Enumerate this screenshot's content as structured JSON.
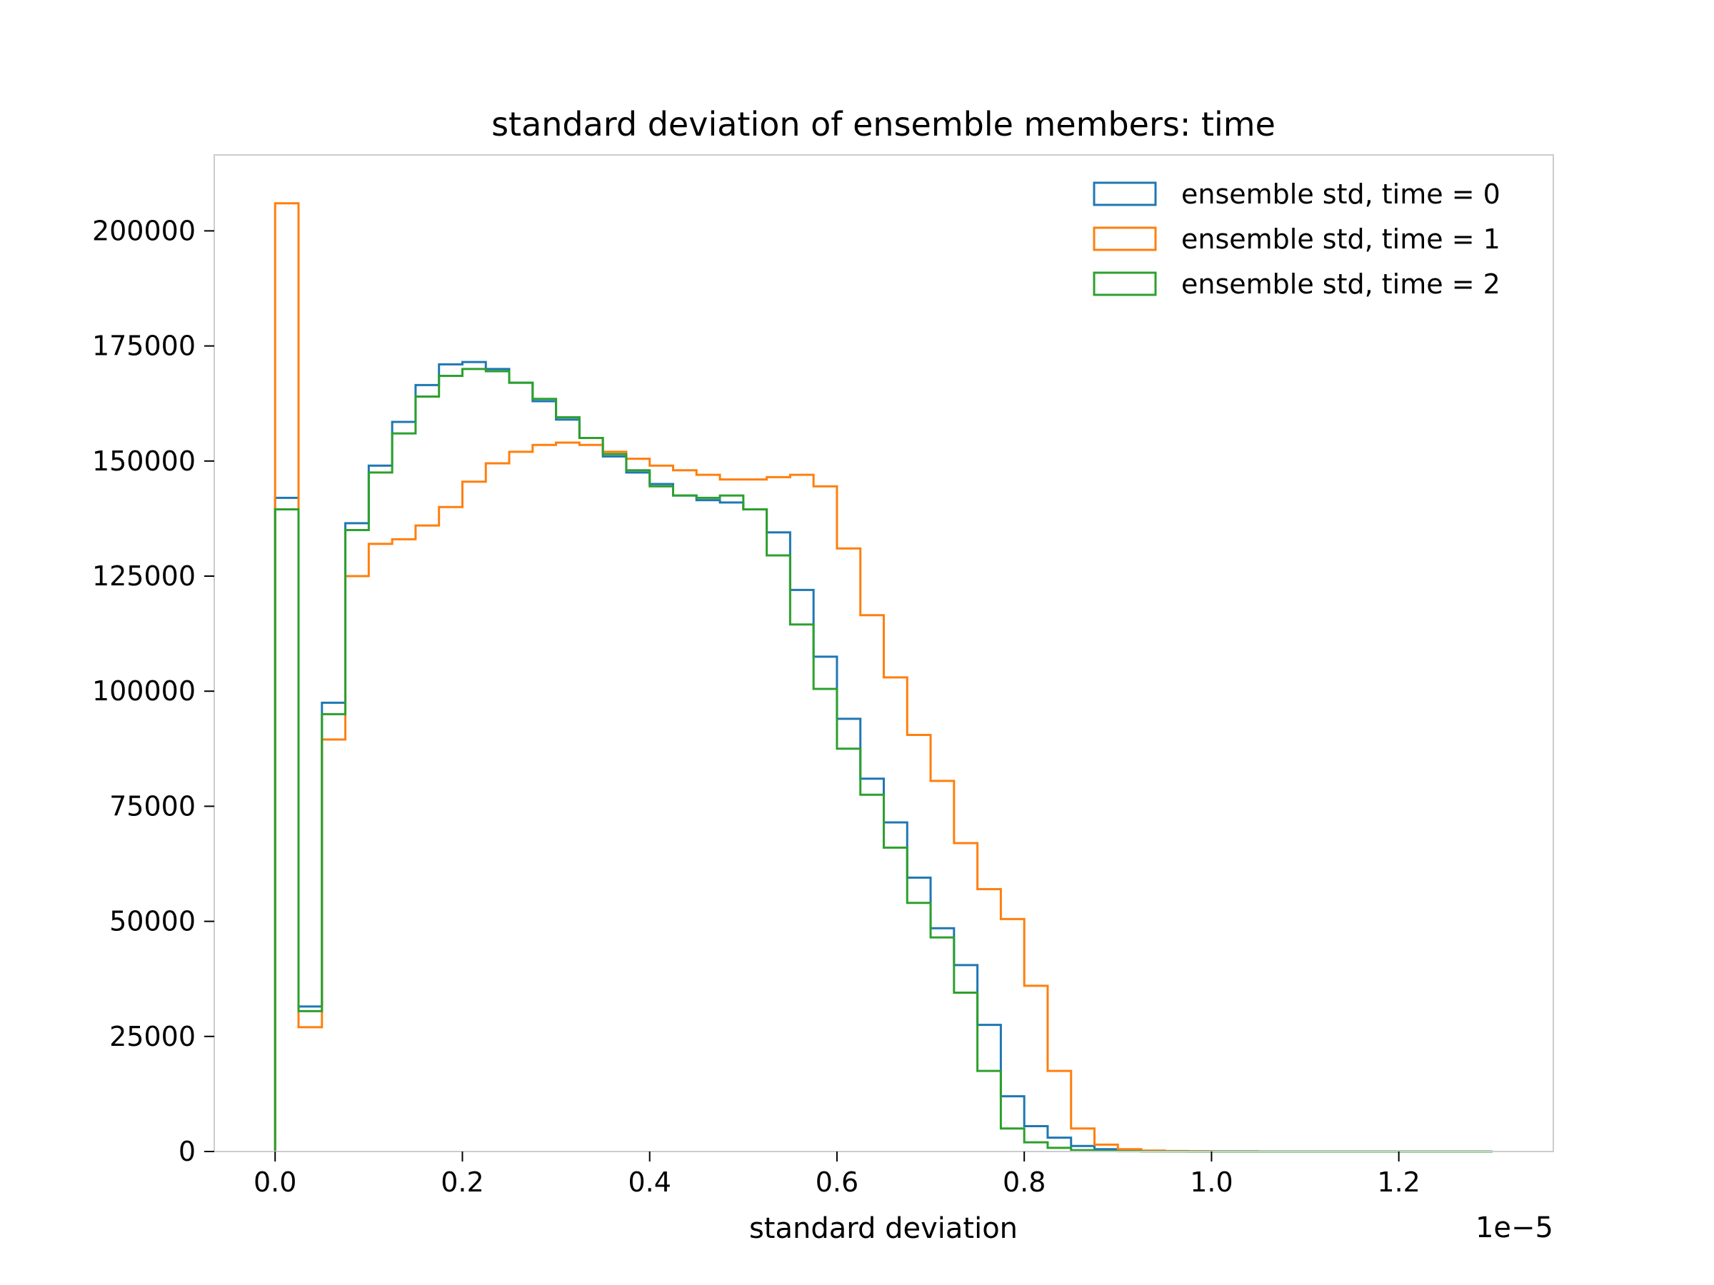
{
  "chart_data": {
    "type": "histogram",
    "title": "standard deviation of ensemble members: time",
    "xlabel": "standard deviation",
    "ylabel": "",
    "x_offset_label": "1e−5",
    "x_scale_factor": 1e-05,
    "xlim": [
      -0.065,
      1.365
    ],
    "ylim": [
      0,
      216500
    ],
    "bin_width": 0.025,
    "bins_start": 0.0,
    "grid": false,
    "legend_position": "top-right",
    "x_ticks": [
      0.0,
      0.2,
      0.4,
      0.6,
      0.8,
      1.0,
      1.2
    ],
    "x_tick_labels": [
      "0.0",
      "0.2",
      "0.4",
      "0.6",
      "0.8",
      "1.0",
      "1.2"
    ],
    "y_ticks": [
      0,
      25000,
      50000,
      75000,
      100000,
      125000,
      150000,
      175000,
      200000
    ],
    "y_tick_labels": [
      "0",
      "25000",
      "50000",
      "75000",
      "100000",
      "125000",
      "150000",
      "175000",
      "200000"
    ],
    "series": [
      {
        "name": "ensemble std, time = 0",
        "color": "#1f77b4",
        "x_max": 1.3,
        "counts": [
          142000,
          31500,
          97500,
          136500,
          149000,
          158500,
          166500,
          171000,
          171500,
          170000,
          167000,
          163000,
          159000,
          155000,
          151000,
          147500,
          145000,
          142500,
          141500,
          141000,
          139500,
          134500,
          122000,
          107500,
          94000,
          81000,
          71500,
          59500,
          48500,
          40500,
          27500,
          12000,
          5500,
          3000,
          1200,
          500,
          200,
          100,
          50,
          30,
          20,
          10,
          5,
          5,
          0,
          0,
          0,
          0,
          0,
          0,
          0,
          0
        ]
      },
      {
        "name": "ensemble std, time = 1",
        "color": "#ff7f0e",
        "x_max": 1.3,
        "counts": [
          206000,
          27000,
          89500,
          125000,
          132000,
          133000,
          136000,
          140000,
          145500,
          149500,
          152000,
          153500,
          154000,
          153500,
          152000,
          150500,
          149000,
          148000,
          147000,
          146000,
          146000,
          146500,
          147000,
          144500,
          131000,
          116500,
          103000,
          90500,
          80500,
          67000,
          57000,
          50500,
          36000,
          17500,
          5000,
          1500,
          500,
          200,
          100,
          50,
          20,
          10,
          5,
          0,
          0,
          0,
          0,
          0,
          0,
          0,
          0,
          0
        ]
      },
      {
        "name": "ensemble std, time = 2",
        "color": "#2ca02c",
        "x_max": 1.3,
        "counts": [
          139500,
          30500,
          95000,
          135000,
          147500,
          156000,
          164000,
          168500,
          170000,
          169500,
          167000,
          163500,
          159500,
          155000,
          151500,
          148000,
          144500,
          142500,
          142000,
          142500,
          139500,
          129500,
          114500,
          100500,
          87500,
          77500,
          66000,
          54000,
          46500,
          34500,
          17500,
          5000,
          2000,
          800,
          300,
          100,
          50,
          20,
          10,
          5,
          0,
          0,
          0,
          0,
          0,
          0,
          0,
          0,
          0,
          0,
          0,
          0
        ]
      }
    ]
  }
}
